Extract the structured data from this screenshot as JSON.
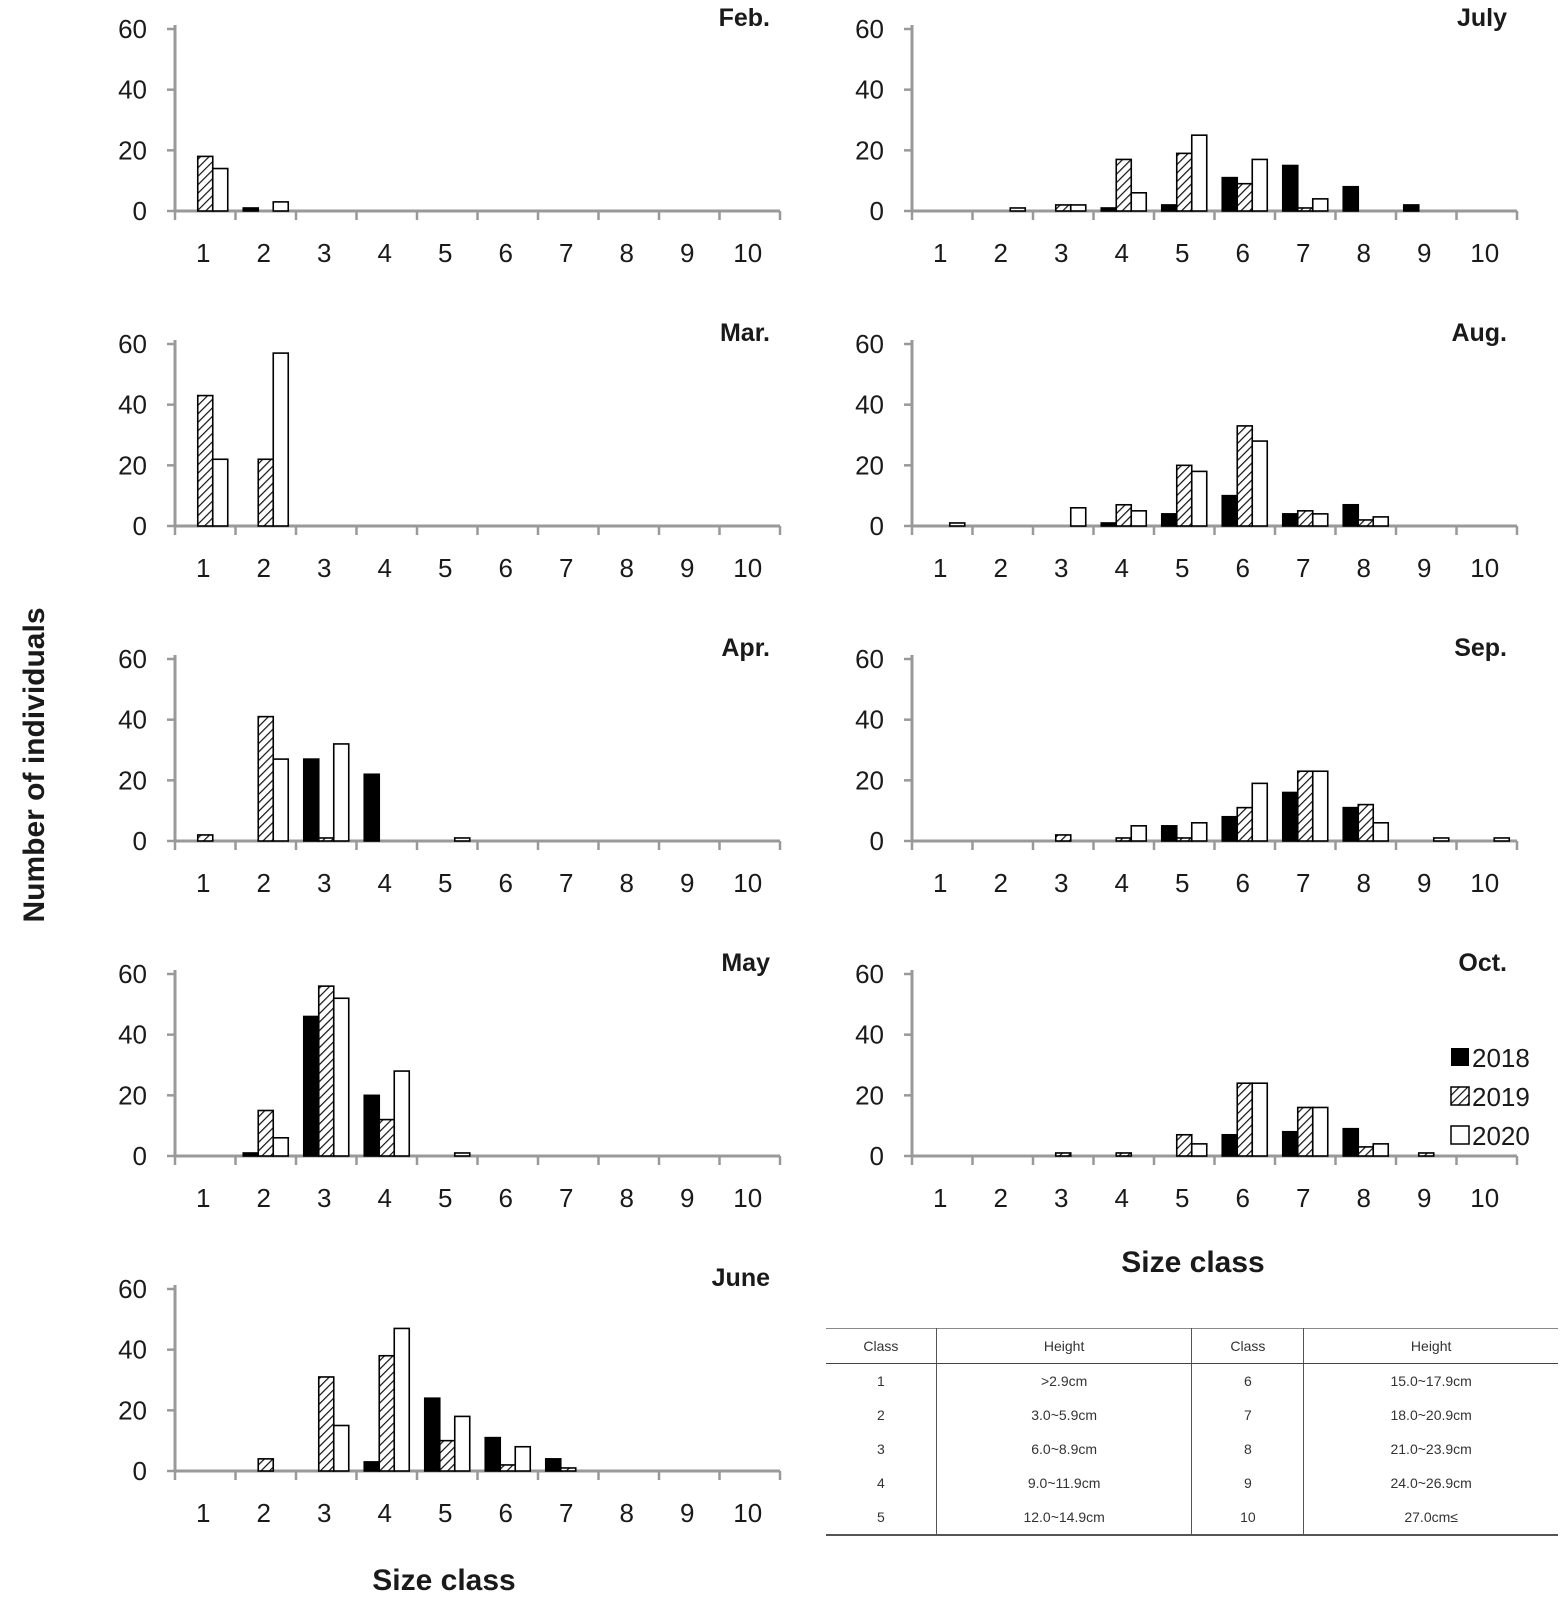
{
  "chart_data": {
    "type": "bar",
    "ylabel": "Number of individuals",
    "xlabel": "Size class",
    "ylim": [
      0,
      60
    ],
    "yticks": [
      "0",
      "20",
      "40",
      "60"
    ],
    "categories": [
      "1",
      "2",
      "3",
      "4",
      "5",
      "6",
      "7",
      "8",
      "9",
      "10"
    ],
    "legend": {
      "position": "right",
      "entries": [
        {
          "name": "2018",
          "style": "solid"
        },
        {
          "name": "2019",
          "style": "hatched"
        },
        {
          "name": "2020",
          "style": "open"
        }
      ]
    },
    "panels": [
      {
        "title": "Feb.",
        "series": [
          {
            "name": "2018",
            "values": [
              0,
              1,
              0,
              0,
              0,
              0,
              0,
              0,
              0,
              0
            ]
          },
          {
            "name": "2019",
            "values": [
              18,
              0,
              0,
              0,
              0,
              0,
              0,
              0,
              0,
              0
            ]
          },
          {
            "name": "2020",
            "values": [
              14,
              3,
              0,
              0,
              0,
              0,
              0,
              0,
              0,
              0
            ]
          }
        ]
      },
      {
        "title": "Mar.",
        "series": [
          {
            "name": "2018",
            "values": [
              0,
              0,
              0,
              0,
              0,
              0,
              0,
              0,
              0,
              0
            ]
          },
          {
            "name": "2019",
            "values": [
              43,
              22,
              0,
              0,
              0,
              0,
              0,
              0,
              0,
              0
            ]
          },
          {
            "name": "2020",
            "values": [
              22,
              57,
              0,
              0,
              0,
              0,
              0,
              0,
              0,
              0
            ]
          }
        ]
      },
      {
        "title": "Apr.",
        "series": [
          {
            "name": "2018",
            "values": [
              0,
              0,
              27,
              22,
              0,
              0,
              0,
              0,
              0,
              0
            ]
          },
          {
            "name": "2019",
            "values": [
              2,
              41,
              1,
              0,
              0,
              0,
              0,
              0,
              0,
              0
            ]
          },
          {
            "name": "2020",
            "values": [
              0,
              27,
              32,
              0,
              1,
              0,
              0,
              0,
              0,
              0
            ]
          }
        ]
      },
      {
        "title": "May",
        "series": [
          {
            "name": "2018",
            "values": [
              0,
              1,
              46,
              20,
              0,
              0,
              0,
              0,
              0,
              0
            ]
          },
          {
            "name": "2019",
            "values": [
              0,
              15,
              56,
              12,
              0,
              0,
              0,
              0,
              0,
              0
            ]
          },
          {
            "name": "2020",
            "values": [
              0,
              6,
              52,
              28,
              1,
              0,
              0,
              0,
              0,
              0
            ]
          }
        ]
      },
      {
        "title": "June",
        "series": [
          {
            "name": "2018",
            "values": [
              0,
              0,
              0,
              3,
              24,
              11,
              4,
              0,
              0,
              0
            ]
          },
          {
            "name": "2019",
            "values": [
              0,
              4,
              31,
              38,
              10,
              2,
              1,
              0,
              0,
              0
            ]
          },
          {
            "name": "2020",
            "values": [
              0,
              0,
              15,
              47,
              18,
              8,
              0,
              0,
              0,
              0
            ]
          }
        ]
      },
      {
        "title": "July",
        "series": [
          {
            "name": "2018",
            "values": [
              0,
              0,
              0,
              1,
              2,
              11,
              15,
              8,
              2,
              0
            ]
          },
          {
            "name": "2019",
            "values": [
              0,
              0,
              2,
              17,
              19,
              9,
              1,
              0,
              0,
              0
            ]
          },
          {
            "name": "2020",
            "values": [
              0,
              1,
              2,
              6,
              25,
              17,
              4,
              0,
              0,
              0
            ]
          }
        ]
      },
      {
        "title": "Aug.",
        "series": [
          {
            "name": "2018",
            "values": [
              0,
              0,
              0,
              1,
              4,
              10,
              4,
              7,
              0,
              0
            ]
          },
          {
            "name": "2019",
            "values": [
              0,
              0,
              0,
              7,
              20,
              33,
              5,
              2,
              0,
              0
            ]
          },
          {
            "name": "2020",
            "values": [
              1,
              0,
              6,
              5,
              18,
              28,
              4,
              3,
              0,
              0
            ]
          }
        ]
      },
      {
        "title": "Sep.",
        "series": [
          {
            "name": "2018",
            "values": [
              0,
              0,
              0,
              0,
              5,
              8,
              16,
              11,
              0,
              0
            ]
          },
          {
            "name": "2019",
            "values": [
              0,
              0,
              2,
              1,
              1,
              11,
              23,
              12,
              0,
              0
            ]
          },
          {
            "name": "2020",
            "values": [
              0,
              0,
              0,
              5,
              6,
              19,
              23,
              6,
              1,
              1
            ]
          }
        ]
      },
      {
        "title": "Oct.",
        "series": [
          {
            "name": "2018",
            "values": [
              0,
              0,
              0,
              0,
              0,
              7,
              8,
              9,
              0,
              0
            ]
          },
          {
            "name": "2019",
            "values": [
              0,
              0,
              1,
              1,
              7,
              24,
              16,
              3,
              1,
              0
            ]
          },
          {
            "name": "2020",
            "values": [
              0,
              0,
              0,
              0,
              4,
              24,
              16,
              4,
              0,
              0
            ]
          }
        ]
      }
    ]
  },
  "size_table": {
    "headers": [
      "Class",
      "Height",
      "Class",
      "Height"
    ],
    "rows": [
      [
        "1",
        ">2.9cm",
        "6",
        "15.0~17.9cm"
      ],
      [
        "2",
        "3.0~5.9cm",
        "7",
        "18.0~20.9cm"
      ],
      [
        "3",
        "6.0~8.9cm",
        "8",
        "21.0~23.9cm"
      ],
      [
        "4",
        "9.0~11.9cm",
        "9",
        "24.0~26.9cm"
      ],
      [
        "5",
        "12.0~14.9cm",
        "10",
        "27.0cm≤"
      ]
    ]
  }
}
